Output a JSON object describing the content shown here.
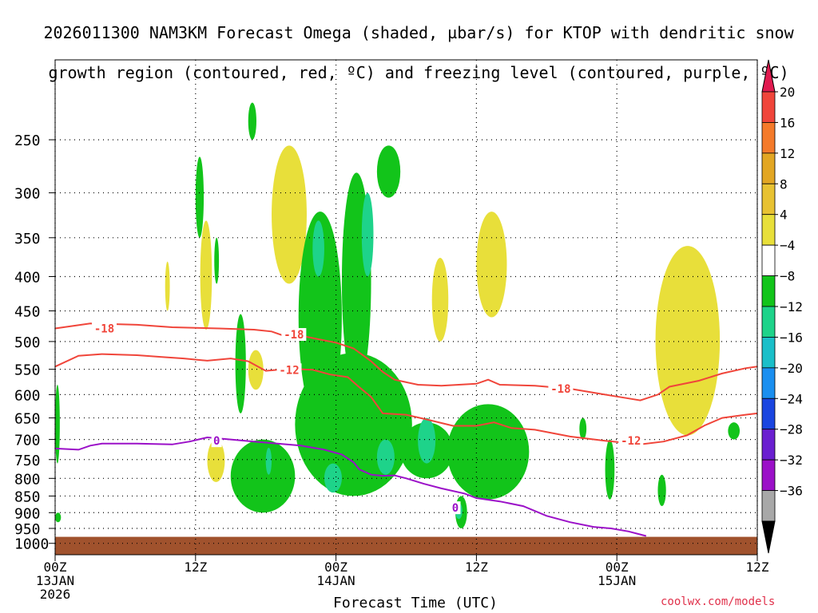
{
  "chart_data": {
    "type": "heatmap",
    "title_line1": "2026011300 NAM3KM Forecast Omega (shaded, µbar/s) for KTOP with dendritic snow",
    "title_line2": "growth region (contoured, red, ºC) and freezing level (contoured, purple, ºC)",
    "xlabel": "Forecast Time (UTC)",
    "x_ticks": [
      {
        "hour": 0,
        "label1": "00Z",
        "label2": "13JAN",
        "label3": "2026"
      },
      {
        "hour": 12,
        "label1": "12Z",
        "label2": "",
        "label3": ""
      },
      {
        "hour": 24,
        "label1": "00Z",
        "label2": "14JAN",
        "label3": ""
      },
      {
        "hour": 36,
        "label1": "12Z",
        "label2": "",
        "label3": ""
      },
      {
        "hour": 48,
        "label1": "00Z",
        "label2": "15JAN",
        "label3": ""
      },
      {
        "hour": 60,
        "label1": "12Z",
        "label2": "",
        "label3": ""
      }
    ],
    "xlim_hours": [
      0,
      60
    ],
    "y_ticks": [
      250,
      300,
      350,
      400,
      450,
      500,
      550,
      600,
      650,
      700,
      750,
      800,
      850,
      900,
      950,
      1000
    ],
    "ylabel": "",
    "grid": true,
    "colorbar": {
      "labels": [
        "20",
        "16",
        "12",
        "8",
        "4",
        "−4",
        "−8",
        "−12",
        "−16",
        "−20",
        "−24",
        "−28",
        "−32",
        "−36"
      ],
      "colors": [
        "#e01a4f",
        "#f0453a",
        "#f47a2a",
        "#e2a623",
        "#e8c232",
        "#e8df3a",
        "#ffffff",
        "#12c41a",
        "#1ed38a",
        "#1abfc9",
        "#1a8ff0",
        "#1a45e0",
        "#6a1fd0",
        "#9b10c8",
        "#a8a8a8",
        "#000000"
      ]
    },
    "contours": [
      {
        "label": "-18",
        "color": "#f0453a",
        "points": [
          [
            0,
            478
          ],
          [
            3,
            470
          ],
          [
            7,
            472
          ],
          [
            10,
            476
          ],
          [
            14,
            478
          ],
          [
            17,
            480
          ],
          [
            18.5,
            483
          ],
          [
            19.5,
            490
          ],
          [
            21,
            490
          ],
          [
            22.5,
            496
          ],
          [
            24,
            502
          ],
          [
            25.5,
            512
          ],
          [
            27,
            535
          ],
          [
            28,
            555
          ],
          [
            29,
            570
          ],
          [
            31,
            580
          ],
          [
            33,
            582
          ],
          [
            36,
            578
          ],
          [
            37,
            570
          ],
          [
            38,
            580
          ],
          [
            41,
            582
          ],
          [
            44,
            588
          ],
          [
            47,
            600
          ],
          [
            49,
            608
          ],
          [
            50,
            612
          ],
          [
            51.5,
            600
          ],
          [
            52.5,
            584
          ],
          [
            55,
            572
          ],
          [
            57,
            558
          ],
          [
            59,
            548
          ],
          [
            60,
            545
          ]
        ]
      },
      {
        "label": "-12",
        "color": "#f0453a",
        "points": [
          [
            0,
            545
          ],
          [
            2,
            525
          ],
          [
            4,
            522
          ],
          [
            7,
            524
          ],
          [
            9,
            527
          ],
          [
            11,
            530
          ],
          [
            13,
            534
          ],
          [
            15,
            530
          ],
          [
            16.5,
            535
          ],
          [
            18,
            553
          ],
          [
            20,
            549
          ],
          [
            22,
            551
          ],
          [
            23.5,
            560
          ],
          [
            25,
            565
          ],
          [
            26,
            585
          ],
          [
            27,
            605
          ],
          [
            28,
            640
          ],
          [
            30,
            643
          ],
          [
            32,
            655
          ],
          [
            34,
            668
          ],
          [
            36,
            668
          ],
          [
            37.5,
            660
          ],
          [
            39,
            673
          ],
          [
            41,
            677
          ],
          [
            44,
            693
          ],
          [
            47,
            703
          ],
          [
            50,
            712
          ],
          [
            52,
            705
          ],
          [
            54,
            690
          ],
          [
            55.5,
            667
          ],
          [
            57,
            650
          ],
          [
            59,
            643
          ],
          [
            60,
            640
          ]
        ]
      },
      {
        "label": "0",
        "color": "#9b10c8",
        "points": [
          [
            0,
            722
          ],
          [
            2,
            725
          ],
          [
            3,
            715
          ],
          [
            4,
            710
          ],
          [
            7,
            710
          ],
          [
            10,
            712
          ],
          [
            11.5,
            705
          ],
          [
            13,
            695
          ],
          [
            15,
            700
          ],
          [
            17,
            705
          ],
          [
            19,
            710
          ],
          [
            21,
            715
          ],
          [
            23,
            725
          ],
          [
            24.5,
            737
          ],
          [
            25.5,
            757
          ],
          [
            26,
            776
          ],
          [
            27,
            790
          ],
          [
            28,
            793
          ],
          [
            29,
            792
          ],
          [
            30,
            800
          ],
          [
            31.5,
            815
          ],
          [
            33,
            828
          ],
          [
            35,
            843
          ],
          [
            36,
            856
          ],
          [
            38,
            866
          ],
          [
            40,
            880
          ],
          [
            42,
            910
          ],
          [
            44,
            930
          ],
          [
            46,
            945
          ],
          [
            47.5,
            950
          ],
          [
            49,
            960
          ],
          [
            50,
            970
          ],
          [
            50.5,
            975
          ]
        ]
      }
    ],
    "contour_labels": [
      {
        "text": "-18",
        "hour": 4.2,
        "p": 478
      },
      {
        "text": "-18",
        "hour": 20.4,
        "p": 488
      },
      {
        "text": "-12",
        "hour": 20.0,
        "p": 551
      },
      {
        "text": "-18",
        "hour": 43.2,
        "p": 588
      },
      {
        "text": "-12",
        "hour": 49.2,
        "p": 703
      },
      {
        "text": "0",
        "hour": 13.8,
        "p": 703
      },
      {
        "text": "0",
        "hour": 34.2,
        "p": 885
      }
    ],
    "omega_regions_positive_4_to_8": [
      {
        "x": [
          12.4,
          13.4
        ],
        "p": [
          330,
          480
        ]
      },
      {
        "x": [
          9.4,
          9.8
        ],
        "p": [
          380,
          450
        ]
      },
      {
        "x": [
          18.5,
          21.5
        ],
        "p": [
          255,
          410
        ]
      },
      {
        "x": [
          16.5,
          17.8
        ],
        "p": [
          515,
          590
        ]
      },
      {
        "x": [
          13.0,
          14.5
        ],
        "p": [
          700,
          810
        ]
      },
      {
        "x": [
          28.2,
          28.8
        ],
        "p": [
          585,
          660
        ]
      },
      {
        "x": [
          32.2,
          33.6
        ],
        "p": [
          375,
          500
        ]
      },
      {
        "x": [
          36.0,
          38.6
        ],
        "p": [
          320,
          460
        ]
      },
      {
        "x": [
          51.3,
          56.8
        ],
        "p": [
          360,
          690
        ]
      }
    ],
    "omega_regions_negative": [
      {
        "x": [
          12.0,
          12.7
        ],
        "p": [
          265,
          350
        ]
      },
      {
        "x": [
          13.6,
          14.0
        ],
        "p": [
          350,
          410
        ]
      },
      {
        "x": [
          15.4,
          16.3
        ],
        "p": [
          455,
          640
        ]
      },
      {
        "x": [
          16.5,
          17.2
        ],
        "p": [
          220,
          250
        ]
      },
      {
        "x": [
          20.8,
          24.5
        ],
        "p": [
          320,
          660
        ]
      },
      {
        "x": [
          24.5,
          27.0
        ],
        "p": [
          280,
          590
        ]
      },
      {
        "x": [
          27.5,
          29.5
        ],
        "p": [
          255,
          305
        ]
      },
      {
        "x": [
          15.0,
          20.5
        ],
        "p": [
          700,
          900
        ]
      },
      {
        "x": [
          20.5,
          30.5
        ],
        "p": [
          520,
          850
        ]
      },
      {
        "x": [
          29.5,
          34.0
        ],
        "p": [
          660,
          800
        ]
      },
      {
        "x": [
          33.5,
          40.5
        ],
        "p": [
          620,
          860
        ]
      },
      {
        "x": [
          34.2,
          35.2
        ],
        "p": [
          850,
          950
        ]
      },
      {
        "x": [
          47.0,
          47.8
        ],
        "p": [
          700,
          860
        ]
      },
      {
        "x": [
          51.5,
          52.2
        ],
        "p": [
          790,
          880
        ]
      },
      {
        "x": [
          57.5,
          58.5
        ],
        "p": [
          660,
          700
        ]
      },
      {
        "x": [
          44.8,
          45.4
        ],
        "p": [
          650,
          700
        ]
      },
      {
        "x": [
          0,
          0.4
        ],
        "p": [
          580,
          760
        ]
      },
      {
        "x": [
          0,
          0.5
        ],
        "p": [
          900,
          930
        ]
      }
    ],
    "omega_regions_strong_negative": [
      {
        "x": [
          22.0,
          23.0
        ],
        "p": [
          330,
          400
        ]
      },
      {
        "x": [
          26.2,
          27.2
        ],
        "p": [
          300,
          400
        ]
      },
      {
        "x": [
          27.5,
          29.0
        ],
        "p": [
          700,
          790
        ]
      },
      {
        "x": [
          31.0,
          32.5
        ],
        "p": [
          650,
          760
        ]
      },
      {
        "x": [
          23.0,
          24.5
        ],
        "p": [
          760,
          840
        ]
      },
      {
        "x": [
          18.0,
          18.5
        ],
        "p": [
          720,
          790
        ]
      },
      {
        "x": [
          34.2,
          34.8
        ],
        "p": [
          870,
          920
        ]
      }
    ],
    "terrain": {
      "color": "#a0522d",
      "surface_p": 978
    }
  },
  "credit": "coolwx.com/models"
}
